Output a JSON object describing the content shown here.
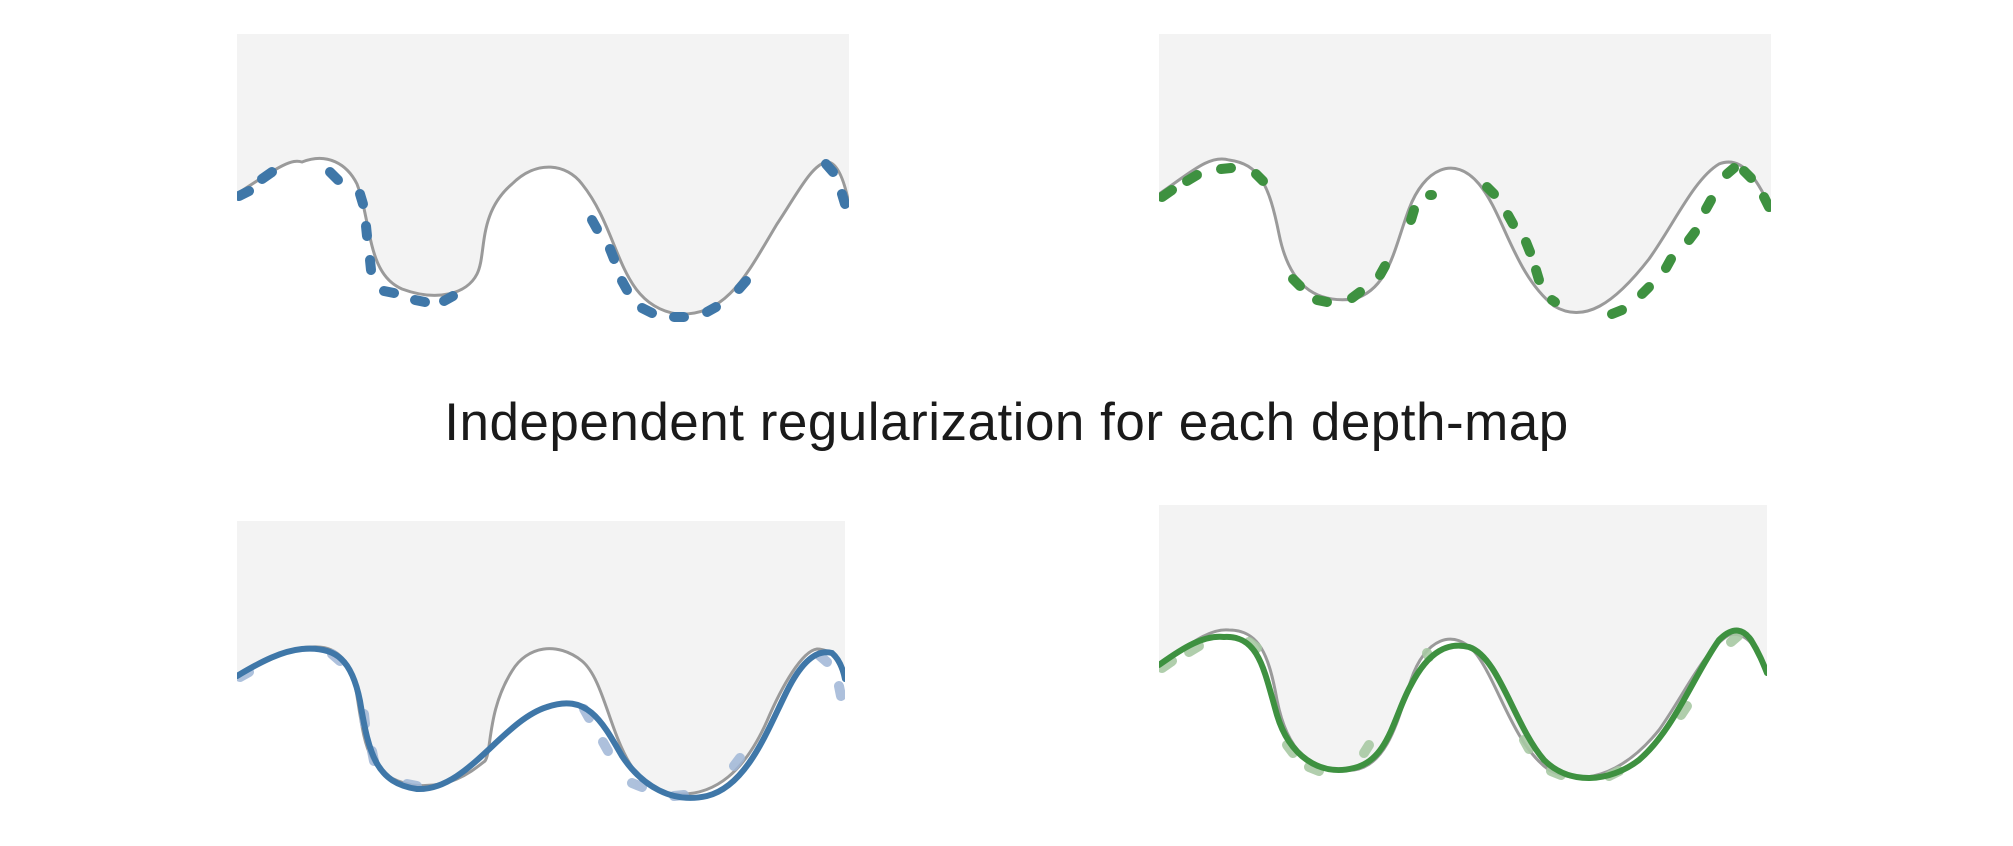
{
  "caption": "Independent regularization for each depth-map",
  "colors": {
    "background_panel": "#f3f3f3",
    "true_surface": "#9a9a9a",
    "camera_a": "#3f77a8",
    "camera_b": "#3e9140"
  },
  "panels": [
    {
      "id": "top-left",
      "type": "raw-depth-samples",
      "color": "camera_a"
    },
    {
      "id": "top-right",
      "type": "raw-depth-samples",
      "color": "camera_b"
    },
    {
      "id": "bottom-left",
      "type": "regularized-depth",
      "color": "camera_a"
    },
    {
      "id": "bottom-right",
      "type": "regularized-depth",
      "color": "camera_b"
    }
  ]
}
